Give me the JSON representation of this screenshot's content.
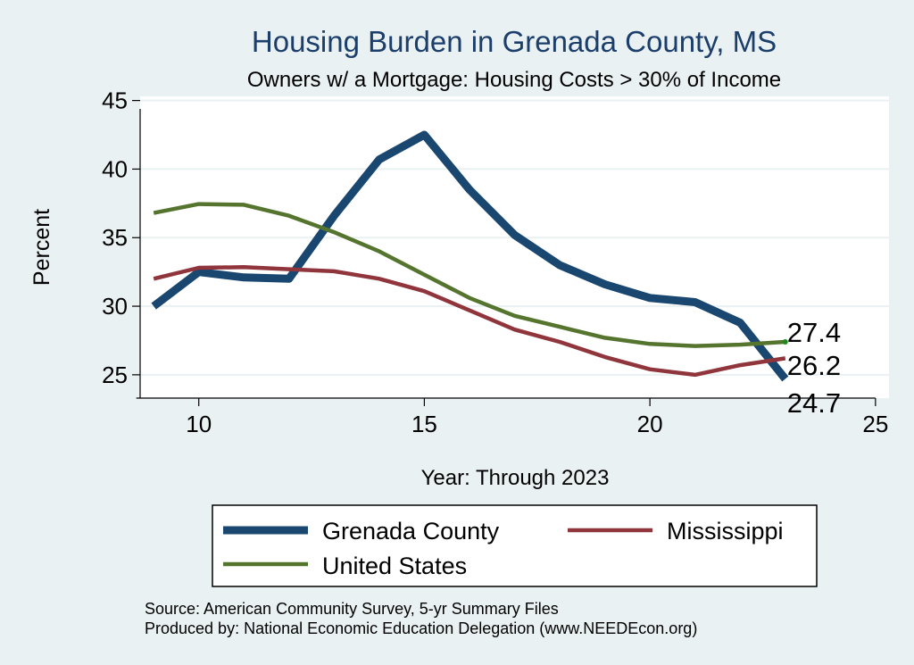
{
  "chart_data": {
    "type": "line",
    "title": "Housing Burden in Grenada County, MS",
    "subtitle": "Owners w/ a Mortgage: Housing Costs > 30% of Income",
    "xlabel": "Year: Through 2023",
    "ylabel": "Percent",
    "xlim": [
      8.7,
      25.3
    ],
    "ylim": [
      23.3,
      45.3
    ],
    "xticks": [
      10,
      15,
      20,
      25
    ],
    "yticks": [
      25,
      30,
      35,
      40,
      45
    ],
    "grid": true,
    "legend_position": "bottom",
    "x": [
      9,
      10,
      11,
      12,
      13,
      14,
      15,
      16,
      17,
      18,
      19,
      20,
      21,
      22,
      23
    ],
    "series": [
      {
        "name": "Grenada County",
        "color": "#1a476f",
        "width": 9,
        "values": [
          30.0,
          32.5,
          32.1,
          32.0,
          36.6,
          40.7,
          42.5,
          38.5,
          35.2,
          33.0,
          31.6,
          30.6,
          30.3,
          28.8,
          24.7
        ],
        "end_label": "24.7"
      },
      {
        "name": "Mississippi",
        "color": "#90353b",
        "width": 4.5,
        "values": [
          32.0,
          32.8,
          32.85,
          32.7,
          32.55,
          32.0,
          31.1,
          29.7,
          28.3,
          27.4,
          26.3,
          25.4,
          25.0,
          25.7,
          26.2
        ],
        "end_label": "26.2"
      },
      {
        "name": "United States",
        "color": "#55752f",
        "width": 4.5,
        "values": [
          36.8,
          37.45,
          37.4,
          36.6,
          35.4,
          34.0,
          32.3,
          30.6,
          29.3,
          28.5,
          27.7,
          27.25,
          27.1,
          27.2,
          27.4
        ],
        "end_label": "27.4"
      }
    ],
    "legend": [
      {
        "name": "Grenada County"
      },
      {
        "name": "Mississippi"
      },
      {
        "name": "United States"
      }
    ],
    "source_notes": [
      "Source: American Community Survey, 5-yr Summary Files",
      "Produced by: National Economic Education Delegation (www.NEEDEcon.org)"
    ]
  }
}
